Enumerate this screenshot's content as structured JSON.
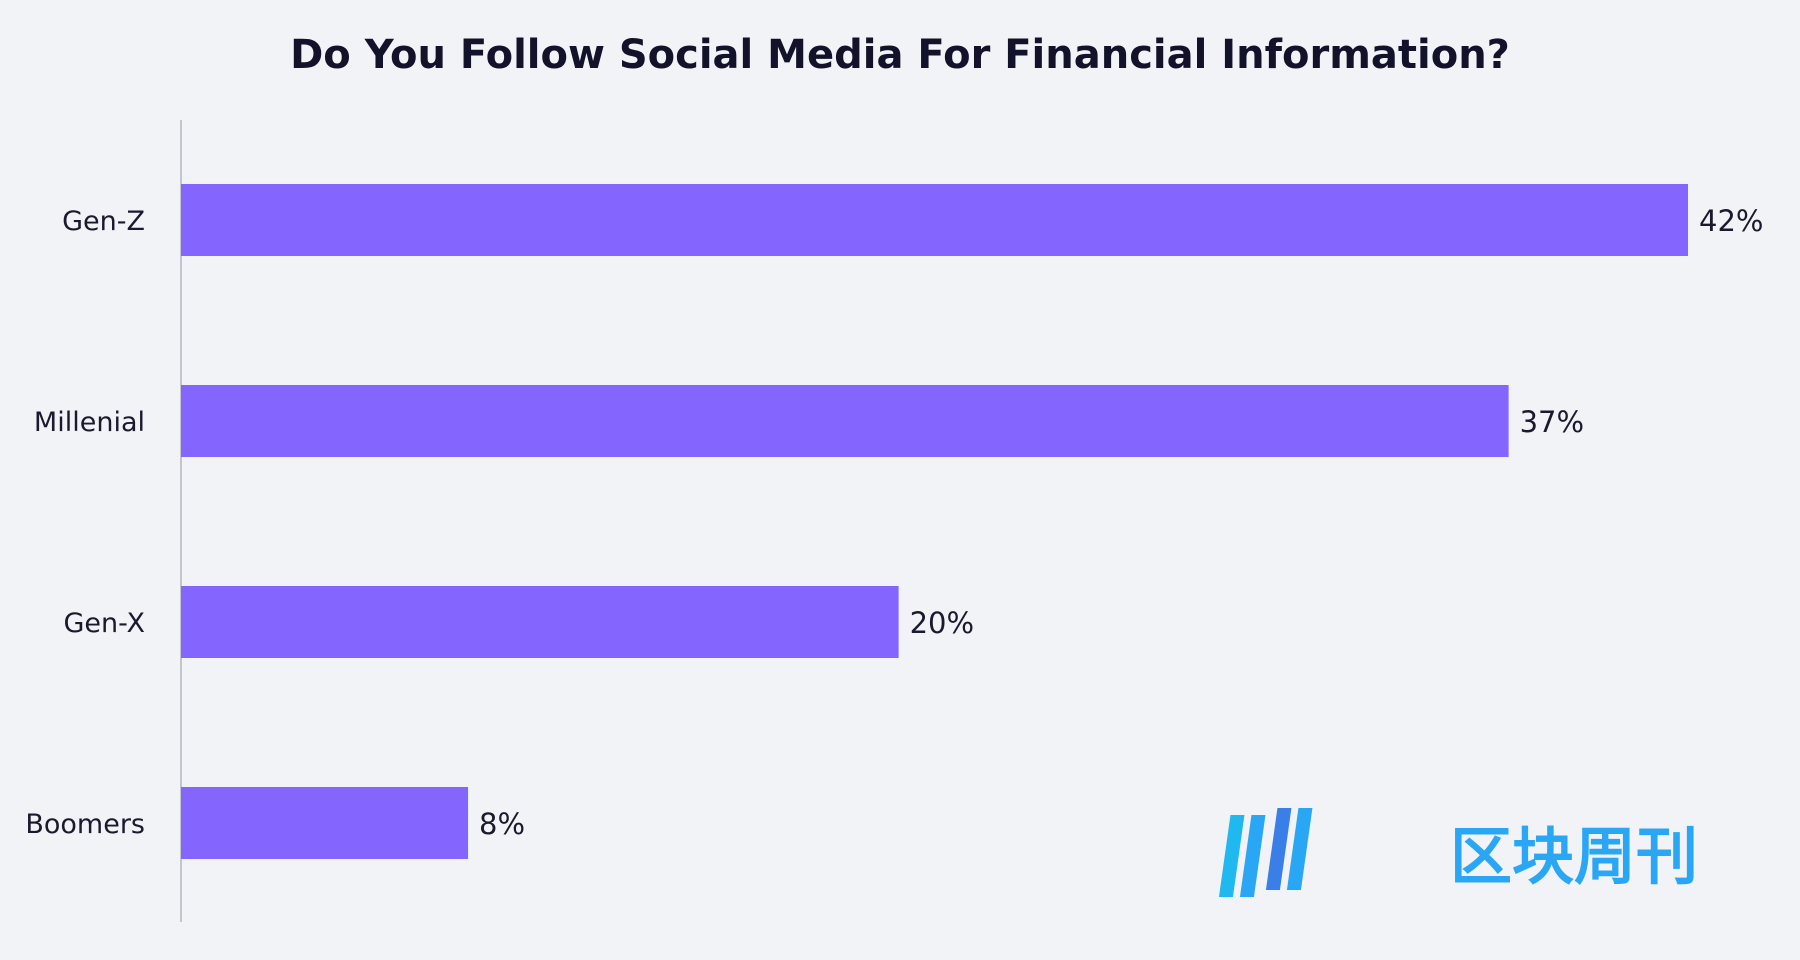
{
  "chart_data": {
    "type": "bar",
    "orientation": "horizontal",
    "title": "Do You Follow Social Media For Financial Information?",
    "categories": [
      "Gen-Z",
      "Millenial",
      "Gen-X",
      "Boomers"
    ],
    "values": [
      42,
      37,
      20,
      8
    ],
    "value_labels": [
      "42%",
      "37%",
      "20%",
      "8%"
    ],
    "value_unit": "%",
    "xlim": [
      0,
      42
    ],
    "bar_color": "#8466ff",
    "grid": false,
    "xlabel": "",
    "ylabel": ""
  },
  "watermark": {
    "text": "区块周刊",
    "color": "#2aa7f4",
    "icon": "bar-logo-icon"
  }
}
